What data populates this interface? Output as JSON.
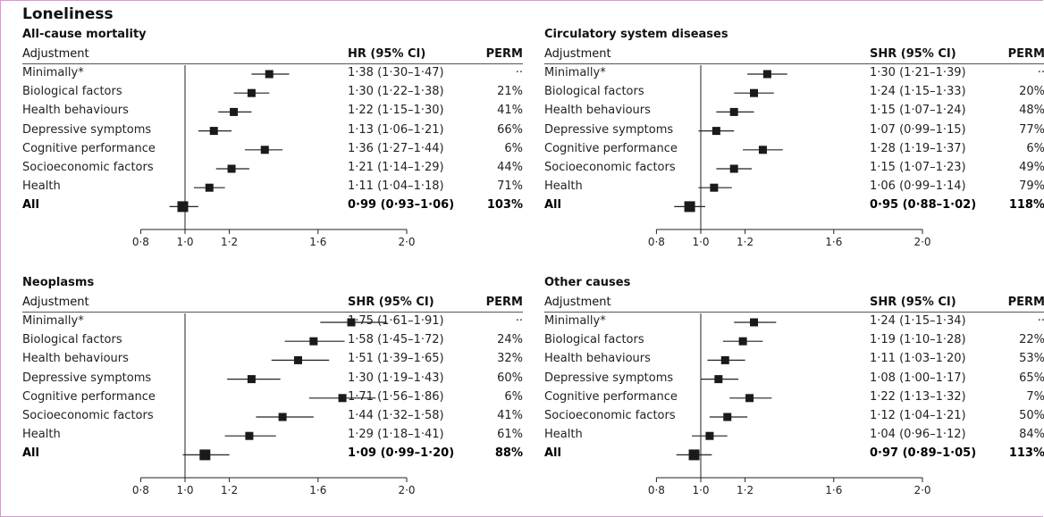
{
  "main_title": "Loneliness",
  "header": {
    "adjustment": "Adjustment",
    "perm": "PERM"
  },
  "chart_data": [
    {
      "type": "forest",
      "title": "All-cause mortality",
      "ci_header": "HR (95% CI)",
      "xticks": [
        "0·8",
        "1·0",
        "1·2",
        "1·6",
        "2·0"
      ],
      "xticks_values": [
        0.8,
        1.0,
        1.2,
        1.6,
        2.0
      ],
      "reference_line": 1.0,
      "xlim": [
        0.8,
        2.0
      ],
      "rows": [
        {
          "label": "Minimally*",
          "est": 1.38,
          "lo": 1.3,
          "hi": 1.47,
          "ci": "1·38 (1·30–1·47)",
          "perm": "··"
        },
        {
          "label": "Biological factors",
          "est": 1.3,
          "lo": 1.22,
          "hi": 1.38,
          "ci": "1·30 (1·22–1·38)",
          "perm": "21%"
        },
        {
          "label": "Health behaviours",
          "est": 1.22,
          "lo": 1.15,
          "hi": 1.3,
          "ci": "1·22 (1·15–1·30)",
          "perm": "41%"
        },
        {
          "label": "Depressive symptoms",
          "est": 1.13,
          "lo": 1.06,
          "hi": 1.21,
          "ci": "1·13 (1·06–1·21)",
          "perm": "66%"
        },
        {
          "label": "Cognitive performance",
          "est": 1.36,
          "lo": 1.27,
          "hi": 1.44,
          "ci": "1·36 (1·27–1·44)",
          "perm": "6%"
        },
        {
          "label": "Socioeconomic factors",
          "est": 1.21,
          "lo": 1.14,
          "hi": 1.29,
          "ci": "1·21 (1·14–1·29)",
          "perm": "44%"
        },
        {
          "label": "Health",
          "est": 1.11,
          "lo": 1.04,
          "hi": 1.18,
          "ci": "1·11 (1·04–1·18)",
          "perm": "71%"
        },
        {
          "label": "All",
          "est": 0.99,
          "lo": 0.93,
          "hi": 1.06,
          "ci": "0·99 (0·93–1·06)",
          "perm": "103%",
          "bold": true
        }
      ]
    },
    {
      "type": "forest",
      "title": "Circulatory system diseases",
      "ci_header": "SHR (95% CI)",
      "xticks": [
        "0·8",
        "1·0",
        "1·2",
        "1·6",
        "2·0"
      ],
      "xticks_values": [
        0.8,
        1.0,
        1.2,
        1.6,
        2.0
      ],
      "reference_line": 1.0,
      "xlim": [
        0.8,
        2.0
      ],
      "rows": [
        {
          "label": "Minimally*",
          "est": 1.3,
          "lo": 1.21,
          "hi": 1.39,
          "ci": "1·30 (1·21–1·39)",
          "perm": "··"
        },
        {
          "label": "Biological factors",
          "est": 1.24,
          "lo": 1.15,
          "hi": 1.33,
          "ci": "1·24 (1·15–1·33)",
          "perm": "20%"
        },
        {
          "label": "Health behaviours",
          "est": 1.15,
          "lo": 1.07,
          "hi": 1.24,
          "ci": "1·15 (1·07–1·24)",
          "perm": "48%"
        },
        {
          "label": "Depressive symptoms",
          "est": 1.07,
          "lo": 0.99,
          "hi": 1.15,
          "ci": "1·07 (0·99–1·15)",
          "perm": "77%"
        },
        {
          "label": "Cognitive performance",
          "est": 1.28,
          "lo": 1.19,
          "hi": 1.37,
          "ci": "1·28 (1·19–1·37)",
          "perm": "6%"
        },
        {
          "label": "Socioeconomic factors",
          "est": 1.15,
          "lo": 1.07,
          "hi": 1.23,
          "ci": "1·15 (1·07–1·23)",
          "perm": "49%"
        },
        {
          "label": "Health",
          "est": 1.06,
          "lo": 0.99,
          "hi": 1.14,
          "ci": "1·06 (0·99–1·14)",
          "perm": "79%"
        },
        {
          "label": "All",
          "est": 0.95,
          "lo": 0.88,
          "hi": 1.02,
          "ci": "0·95 (0·88–1·02)",
          "perm": "118%",
          "bold": true
        }
      ]
    },
    {
      "type": "forest",
      "title": "Neoplasms",
      "ci_header": "SHR (95% CI)",
      "xticks": [
        "0·8",
        "1·0",
        "1·2",
        "1·6",
        "2·0"
      ],
      "xticks_values": [
        0.8,
        1.0,
        1.2,
        1.6,
        2.0
      ],
      "reference_line": 1.0,
      "xlim": [
        0.8,
        2.0
      ],
      "rows": [
        {
          "label": "Minimally*",
          "est": 1.75,
          "lo": 1.61,
          "hi": 1.91,
          "ci": "1·75 (1·61–1·91)",
          "perm": "··"
        },
        {
          "label": "Biological factors",
          "est": 1.58,
          "lo": 1.45,
          "hi": 1.72,
          "ci": "1·58 (1·45–1·72)",
          "perm": "24%"
        },
        {
          "label": "Health behaviours",
          "est": 1.51,
          "lo": 1.39,
          "hi": 1.65,
          "ci": "1·51 (1·39–1·65)",
          "perm": "32%"
        },
        {
          "label": "Depressive symptoms",
          "est": 1.3,
          "lo": 1.19,
          "hi": 1.43,
          "ci": "1·30 (1·19–1·43)",
          "perm": "60%"
        },
        {
          "label": "Cognitive performance",
          "est": 1.71,
          "lo": 1.56,
          "hi": 1.86,
          "ci": "1·71 (1·56–1·86)",
          "perm": "6%"
        },
        {
          "label": "Socioeconomic factors",
          "est": 1.44,
          "lo": 1.32,
          "hi": 1.58,
          "ci": "1·44 (1·32–1·58)",
          "perm": "41%"
        },
        {
          "label": "Health",
          "est": 1.29,
          "lo": 1.18,
          "hi": 1.41,
          "ci": "1·29 (1·18–1·41)",
          "perm": "61%"
        },
        {
          "label": "All",
          "est": 1.09,
          "lo": 0.99,
          "hi": 1.2,
          "ci": "1·09 (0·99–1·20)",
          "perm": "88%",
          "bold": true
        }
      ]
    },
    {
      "type": "forest",
      "title": "Other causes",
      "ci_header": "SHR (95% CI)",
      "xticks": [
        "0·8",
        "1·0",
        "1·2",
        "1·6",
        "2·0"
      ],
      "xticks_values": [
        0.8,
        1.0,
        1.2,
        1.6,
        2.0
      ],
      "reference_line": 1.0,
      "xlim": [
        0.8,
        2.0
      ],
      "rows": [
        {
          "label": "Minimally*",
          "est": 1.24,
          "lo": 1.15,
          "hi": 1.34,
          "ci": "1·24 (1·15–1·34)",
          "perm": "··"
        },
        {
          "label": "Biological factors",
          "est": 1.19,
          "lo": 1.1,
          "hi": 1.28,
          "ci": "1·19 (1·10–1·28)",
          "perm": "22%"
        },
        {
          "label": "Health behaviours",
          "est": 1.11,
          "lo": 1.03,
          "hi": 1.2,
          "ci": "1·11 (1·03–1·20)",
          "perm": "53%"
        },
        {
          "label": "Depressive symptoms",
          "est": 1.08,
          "lo": 1.0,
          "hi": 1.17,
          "ci": "1·08 (1·00–1·17)",
          "perm": "65%"
        },
        {
          "label": "Cognitive performance",
          "est": 1.22,
          "lo": 1.13,
          "hi": 1.32,
          "ci": "1·22 (1·13–1·32)",
          "perm": "7%"
        },
        {
          "label": "Socioeconomic factors",
          "est": 1.12,
          "lo": 1.04,
          "hi": 1.21,
          "ci": "1·12 (1·04–1·21)",
          "perm": "50%"
        },
        {
          "label": "Health",
          "est": 1.04,
          "lo": 0.96,
          "hi": 1.12,
          "ci": "1·04 (0·96–1·12)",
          "perm": "84%"
        },
        {
          "label": "All",
          "est": 0.97,
          "lo": 0.89,
          "hi": 1.05,
          "ci": "0·97 (0·89–1·05)",
          "perm": "113%",
          "bold": true
        }
      ]
    }
  ]
}
